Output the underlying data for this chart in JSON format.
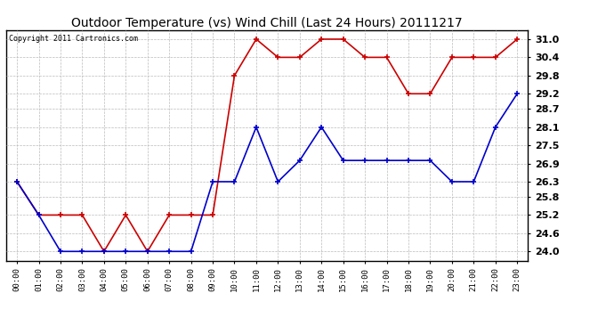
{
  "title": "Outdoor Temperature (vs) Wind Chill (Last 24 Hours) 20111217",
  "copyright": "Copyright 2011 Cartronics.com",
  "x_labels": [
    "00:00",
    "01:00",
    "02:00",
    "03:00",
    "04:00",
    "05:00",
    "06:00",
    "07:00",
    "08:00",
    "09:00",
    "10:00",
    "11:00",
    "12:00",
    "13:00",
    "14:00",
    "15:00",
    "16:00",
    "17:00",
    "18:00",
    "19:00",
    "20:00",
    "21:00",
    "22:00",
    "23:00"
  ],
  "temp_red": [
    26.3,
    25.2,
    25.2,
    25.2,
    24.0,
    25.2,
    24.0,
    25.2,
    25.2,
    25.2,
    29.8,
    31.0,
    30.4,
    30.4,
    31.0,
    31.0,
    30.4,
    30.4,
    29.2,
    29.2,
    30.4,
    30.4,
    30.4,
    31.0
  ],
  "temp_blue": [
    26.3,
    25.2,
    24.0,
    24.0,
    24.0,
    24.0,
    24.0,
    24.0,
    24.0,
    26.3,
    26.3,
    28.1,
    26.3,
    27.0,
    28.1,
    27.0,
    27.0,
    27.0,
    27.0,
    27.0,
    26.3,
    26.3,
    28.1,
    29.2
  ],
  "ylim_min": 23.7,
  "ylim_max": 31.3,
  "yticks": [
    24.0,
    24.6,
    25.2,
    25.8,
    26.3,
    26.9,
    27.5,
    28.1,
    28.7,
    29.2,
    29.8,
    30.4,
    31.0
  ],
  "ytick_labels": [
    "24.0",
    "24.6",
    "25.2",
    "25.8",
    "26.3",
    "26.9",
    "27.5",
    "28.1",
    "28.7",
    "29.2",
    "29.8",
    "30.4",
    "31.0"
  ],
  "red_color": "#cc0000",
  "blue_color": "#0000cc",
  "bg_color": "#ffffff",
  "grid_color": "#bbbbbb",
  "title_fontsize": 10,
  "copyright_fontsize": 6,
  "tick_fontsize": 6.5,
  "ytick_fontsize": 8
}
